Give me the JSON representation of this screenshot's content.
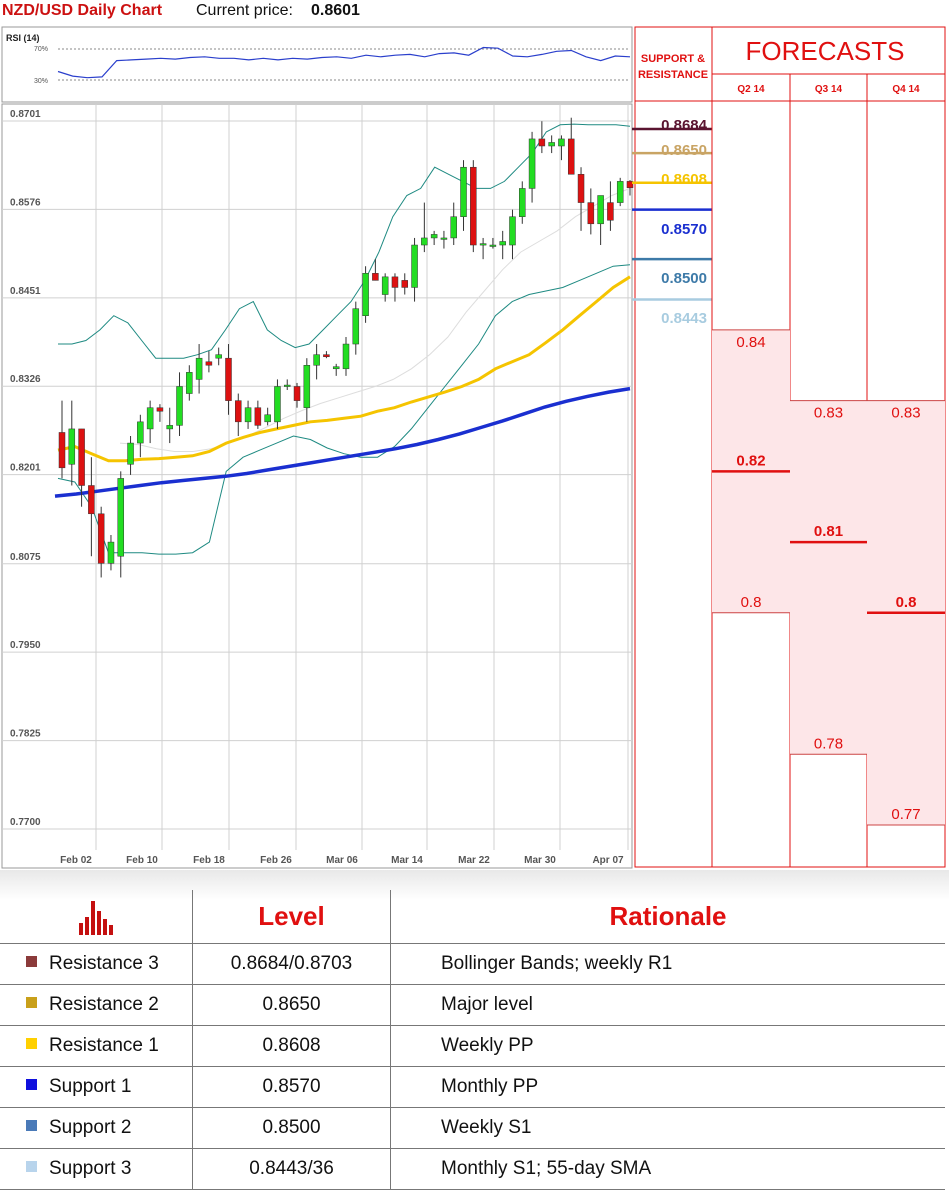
{
  "header": {
    "title": "NZD/USD Daily Chart",
    "price_label": "Current price:",
    "price_value": "0.8601"
  },
  "rsi": {
    "label": "RSI (14)",
    "level_high": "70%",
    "level_low": "30%",
    "color": "#2a3fcc",
    "values": [
      41,
      35,
      33,
      34,
      55,
      56,
      57,
      58,
      57,
      59,
      60,
      58,
      58,
      56,
      58,
      56,
      58,
      57,
      59,
      60,
      58,
      62,
      60,
      62,
      63,
      60,
      64,
      65,
      62,
      72,
      71,
      61,
      60,
      63,
      67,
      68,
      60,
      55,
      61,
      60
    ]
  },
  "chart_data": {
    "type": "candlestick",
    "title": "NZD/USD Daily Chart",
    "ylim": [
      0.77,
      0.8701
    ],
    "y_ticks": [
      "0.8701",
      "0.8576",
      "0.8451",
      "0.8326",
      "0.8201",
      "0.8075",
      "0.7950",
      "0.7825",
      "0.7700"
    ],
    "x_ticks": [
      "Feb 02",
      "Feb 10",
      "Feb 18",
      "Feb 26",
      "Mar 06",
      "Mar 14",
      "Mar 22",
      "Mar 30",
      "Apr 07"
    ],
    "candles": [
      {
        "o": 0.8255,
        "h": 0.83,
        "l": 0.819,
        "c": 0.8205
      },
      {
        "o": 0.821,
        "h": 0.83,
        "l": 0.818,
        "c": 0.826
      },
      {
        "o": 0.826,
        "h": 0.826,
        "l": 0.815,
        "c": 0.818
      },
      {
        "o": 0.818,
        "h": 0.822,
        "l": 0.808,
        "c": 0.814
      },
      {
        "o": 0.814,
        "h": 0.815,
        "l": 0.805,
        "c": 0.807
      },
      {
        "o": 0.807,
        "h": 0.811,
        "l": 0.806,
        "c": 0.81
      },
      {
        "o": 0.808,
        "h": 0.82,
        "l": 0.805,
        "c": 0.819
      },
      {
        "o": 0.821,
        "h": 0.825,
        "l": 0.8195,
        "c": 0.824
      },
      {
        "o": 0.824,
        "h": 0.828,
        "l": 0.822,
        "c": 0.827
      },
      {
        "o": 0.826,
        "h": 0.83,
        "l": 0.824,
        "c": 0.829
      },
      {
        "o": 0.829,
        "h": 0.8295,
        "l": 0.827,
        "c": 0.8285
      },
      {
        "o": 0.826,
        "h": 0.829,
        "l": 0.824,
        "c": 0.8265
      },
      {
        "o": 0.8265,
        "h": 0.834,
        "l": 0.825,
        "c": 0.832
      },
      {
        "o": 0.831,
        "h": 0.835,
        "l": 0.83,
        "c": 0.834
      },
      {
        "o": 0.833,
        "h": 0.838,
        "l": 0.831,
        "c": 0.836
      },
      {
        "o": 0.8355,
        "h": 0.837,
        "l": 0.834,
        "c": 0.835
      },
      {
        "o": 0.836,
        "h": 0.8375,
        "l": 0.835,
        "c": 0.8365
      },
      {
        "o": 0.836,
        "h": 0.838,
        "l": 0.828,
        "c": 0.83
      },
      {
        "o": 0.83,
        "h": 0.831,
        "l": 0.825,
        "c": 0.827
      },
      {
        "o": 0.827,
        "h": 0.83,
        "l": 0.826,
        "c": 0.829
      },
      {
        "o": 0.829,
        "h": 0.83,
        "l": 0.826,
        "c": 0.8265
      },
      {
        "o": 0.827,
        "h": 0.829,
        "l": 0.8265,
        "c": 0.828
      },
      {
        "o": 0.827,
        "h": 0.833,
        "l": 0.826,
        "c": 0.832
      },
      {
        "o": 0.832,
        "h": 0.833,
        "l": 0.8315,
        "c": 0.8322
      },
      {
        "o": 0.832,
        "h": 0.8325,
        "l": 0.829,
        "c": 0.83
      },
      {
        "o": 0.829,
        "h": 0.836,
        "l": 0.827,
        "c": 0.835
      },
      {
        "o": 0.835,
        "h": 0.838,
        "l": 0.833,
        "c": 0.8365
      },
      {
        "o": 0.8365,
        "h": 0.837,
        "l": 0.836,
        "c": 0.8362
      },
      {
        "o": 0.8345,
        "h": 0.8352,
        "l": 0.8335,
        "c": 0.8348
      },
      {
        "o": 0.8345,
        "h": 0.839,
        "l": 0.8335,
        "c": 0.838
      },
      {
        "o": 0.838,
        "h": 0.844,
        "l": 0.8365,
        "c": 0.843
      },
      {
        "o": 0.842,
        "h": 0.849,
        "l": 0.841,
        "c": 0.848
      },
      {
        "o": 0.848,
        "h": 0.85,
        "l": 0.847,
        "c": 0.847
      },
      {
        "o": 0.845,
        "h": 0.848,
        "l": 0.844,
        "c": 0.8475
      },
      {
        "o": 0.8475,
        "h": 0.848,
        "l": 0.844,
        "c": 0.846
      },
      {
        "o": 0.847,
        "h": 0.848,
        "l": 0.845,
        "c": 0.846
      },
      {
        "o": 0.846,
        "h": 0.853,
        "l": 0.844,
        "c": 0.852
      },
      {
        "o": 0.852,
        "h": 0.858,
        "l": 0.851,
        "c": 0.853
      },
      {
        "o": 0.853,
        "h": 0.854,
        "l": 0.852,
        "c": 0.8535
      },
      {
        "o": 0.853,
        "h": 0.854,
        "l": 0.8515,
        "c": 0.853
      },
      {
        "o": 0.853,
        "h": 0.858,
        "l": 0.852,
        "c": 0.856
      },
      {
        "o": 0.856,
        "h": 0.864,
        "l": 0.854,
        "c": 0.863
      },
      {
        "o": 0.863,
        "h": 0.864,
        "l": 0.851,
        "c": 0.852
      },
      {
        "o": 0.852,
        "h": 0.853,
        "l": 0.85,
        "c": 0.8522
      },
      {
        "o": 0.852,
        "h": 0.853,
        "l": 0.8515,
        "c": 0.852
      },
      {
        "o": 0.852,
        "h": 0.854,
        "l": 0.85,
        "c": 0.8525
      },
      {
        "o": 0.852,
        "h": 0.857,
        "l": 0.85,
        "c": 0.856
      },
      {
        "o": 0.856,
        "h": 0.861,
        "l": 0.855,
        "c": 0.86
      },
      {
        "o": 0.86,
        "h": 0.868,
        "l": 0.858,
        "c": 0.867
      },
      {
        "o": 0.867,
        "h": 0.8695,
        "l": 0.865,
        "c": 0.866
      },
      {
        "o": 0.866,
        "h": 0.8675,
        "l": 0.865,
        "c": 0.8665
      },
      {
        "o": 0.866,
        "h": 0.8675,
        "l": 0.864,
        "c": 0.867
      },
      {
        "o": 0.867,
        "h": 0.87,
        "l": 0.862,
        "c": 0.862
      },
      {
        "o": 0.862,
        "h": 0.863,
        "l": 0.854,
        "c": 0.858
      },
      {
        "o": 0.858,
        "h": 0.86,
        "l": 0.8535,
        "c": 0.855
      },
      {
        "o": 0.855,
        "h": 0.859,
        "l": 0.852,
        "c": 0.859
      },
      {
        "o": 0.858,
        "h": 0.861,
        "l": 0.854,
        "c": 0.8555
      },
      {
        "o": 0.858,
        "h": 0.8615,
        "l": 0.8575,
        "c": 0.861
      },
      {
        "o": 0.861,
        "h": 0.8612,
        "l": 0.859,
        "c": 0.8601
      }
    ],
    "sma55": [
      0.823,
      0.8235,
      0.8225,
      0.8215,
      0.8215,
      0.8217,
      0.8218,
      0.822,
      0.8222,
      0.8228,
      0.824,
      0.8248,
      0.8255,
      0.826,
      0.8265,
      0.827,
      0.8272,
      0.8275,
      0.8278,
      0.8285,
      0.829,
      0.8298,
      0.8305,
      0.8312,
      0.832,
      0.833,
      0.8345,
      0.8355,
      0.8365,
      0.8382,
      0.84,
      0.842,
      0.844,
      0.846,
      0.8475
    ],
    "sma200": [
      0.8165,
      0.8168,
      0.8172,
      0.8176,
      0.818,
      0.8184,
      0.8187,
      0.819,
      0.8193,
      0.8197,
      0.8202,
      0.8207,
      0.8212,
      0.8217,
      0.8222,
      0.8227,
      0.8232,
      0.8238,
      0.8245,
      0.8253,
      0.8262,
      0.8271,
      0.8281,
      0.8291,
      0.8299,
      0.8306,
      0.8312,
      0.8317
    ],
    "bb_upper": [
      0.838,
      0.838,
      0.8385,
      0.84,
      0.842,
      0.841,
      0.8385,
      0.836,
      0.836,
      0.836,
      0.8365,
      0.8372,
      0.84,
      0.843,
      0.844,
      0.84,
      0.8385,
      0.8375,
      0.838,
      0.84,
      0.842,
      0.844,
      0.847,
      0.851,
      0.856,
      0.859,
      0.86,
      0.863,
      0.862,
      0.861,
      0.86,
      0.86,
      0.861,
      0.863,
      0.865,
      0.868,
      0.869,
      0.8691,
      0.869,
      0.869,
      0.869,
      0.8688
    ],
    "bb_lower": [
      0.819,
      0.8185,
      0.815,
      0.8085,
      0.8085,
      0.8085,
      0.8083,
      0.8083,
      0.8085,
      0.81,
      0.82,
      0.822,
      0.823,
      0.824,
      0.825,
      0.8245,
      0.8233,
      0.8225,
      0.822,
      0.822,
      0.8235,
      0.826,
      0.829,
      0.832,
      0.835,
      0.838,
      0.842,
      0.844,
      0.845,
      0.8455,
      0.846,
      0.847,
      0.848,
      0.849,
      0.8492
    ],
    "bb_mid": [
      0.824,
      0.8238,
      0.8232,
      0.8228,
      0.8228,
      0.8232,
      0.824,
      0.825,
      0.8262,
      0.8275,
      0.8286,
      0.8296,
      0.8304,
      0.8312,
      0.832,
      0.833,
      0.8345,
      0.8365,
      0.839,
      0.8425,
      0.8455,
      0.8485,
      0.851,
      0.8525,
      0.854,
      0.856,
      0.8575,
      0.859,
      0.86
    ],
    "colors": {
      "up": "#22dd22",
      "down": "#dd1111",
      "sma55": "#f5c400",
      "sma200": "#1a2fd0",
      "bb": "#1e8a82",
      "bb_mid": "#dddddd"
    }
  },
  "support_resistance": {
    "title_line1": "SUPPORT &",
    "title_line2": "RESISTANCE",
    "levels": [
      {
        "value": "0.8684",
        "color": "#5a1430",
        "line": 0.8684
      },
      {
        "value": "0.8650",
        "color": "#c9a464",
        "line": 0.865
      },
      {
        "value": "0.8608",
        "color": "#f5c400",
        "line": 0.8608
      },
      {
        "value": "0.8570",
        "color": "#1a2fd0",
        "line": 0.857
      },
      {
        "value": "0.8500",
        "color": "#3d7aa8",
        "line": 0.85
      },
      {
        "value": "0.8443",
        "color": "#a8cce0",
        "line": 0.8443
      }
    ]
  },
  "forecasts": {
    "title": "FORECASTS",
    "quarters": [
      {
        "label": "Q2 14",
        "high": "0.84",
        "mid": "0.82",
        "low": "0.8",
        "high_v": 0.84,
        "mid_v": 0.82,
        "low_v": 0.8
      },
      {
        "label": "Q3 14",
        "high": "0.83",
        "mid": "0.81",
        "low": "0.78",
        "high_v": 0.83,
        "mid_v": 0.81,
        "low_v": 0.78
      },
      {
        "label": "Q4 14",
        "high": "0.83",
        "mid": "0.8",
        "low": "0.77",
        "high_v": 0.83,
        "mid_v": 0.8,
        "low_v": 0.77
      }
    ],
    "color": "#e01010",
    "fill": "#fde6e8"
  },
  "table": {
    "headers": [
      "Level",
      "Rationale"
    ],
    "icon": "bar-chart-icon",
    "rows": [
      {
        "name": "Resistance 3",
        "level": "0.8684/0.8703",
        "rationale": "Bollinger Bands; weekly R1",
        "color": "#8b3a3a"
      },
      {
        "name": "Resistance 2",
        "level": "0.8650",
        "rationale": "Major level",
        "color": "#c9a01a"
      },
      {
        "name": "Resistance 1",
        "level": "0.8608",
        "rationale": "Weekly PP",
        "color": "#ffd000"
      },
      {
        "name": "Support 1",
        "level": "0.8570",
        "rationale": "Monthly PP",
        "color": "#1010dd"
      },
      {
        "name": "Support 2",
        "level": "0.8500",
        "rationale": "Weekly S1",
        "color": "#4a7ab8"
      },
      {
        "name": "Support 3",
        "level": "0.8443/36",
        "rationale": "Monthly S1; 55-day SMA",
        "color": "#b8d4ec"
      }
    ]
  }
}
